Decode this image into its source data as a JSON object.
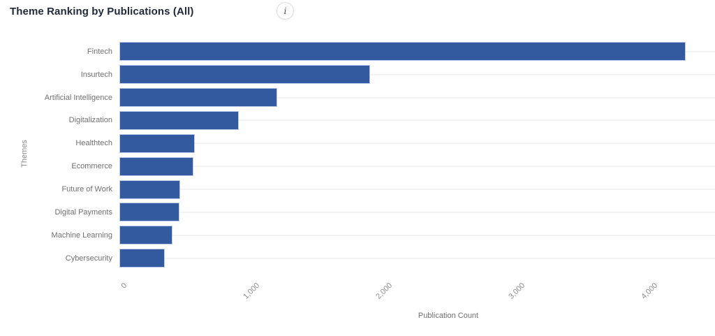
{
  "header": {
    "title": "Theme Ranking by Publications (All)",
    "info_icon": "i"
  },
  "colors": {
    "bar_fill": "#33599e",
    "bar_border": "#b9c9e8",
    "gridline": "#f3f3f3",
    "title_text": "#21293b",
    "category_text": "#6f6f6f",
    "tick_text": "#8d8d8d",
    "background": "#ffffff"
  },
  "chart_data": {
    "type": "bar",
    "orientation": "horizontal",
    "title": "Theme Ranking by Publications (All)",
    "xlabel": "Publication Count",
    "ylabel": "Themes",
    "categories": [
      "Fintech",
      "Insurtech",
      "Artificial Intelligence",
      "Digitalization",
      "Healthtech",
      "Ecommerce",
      "Future of Work",
      "Digital Payments",
      "Machine Learning",
      "Cybersecurity"
    ],
    "values": [
      4270,
      1890,
      1190,
      900,
      570,
      560,
      460,
      450,
      400,
      340
    ],
    "xticks": {
      "values": [
        0,
        1000,
        2000,
        3000,
        4000
      ],
      "labels": [
        "0",
        "1,000",
        "2,000",
        "3,000",
        "4,000"
      ]
    },
    "xlim": [
      0,
      4500
    ],
    "grid": "faint horizontal guide line per category row",
    "legend": "none"
  }
}
